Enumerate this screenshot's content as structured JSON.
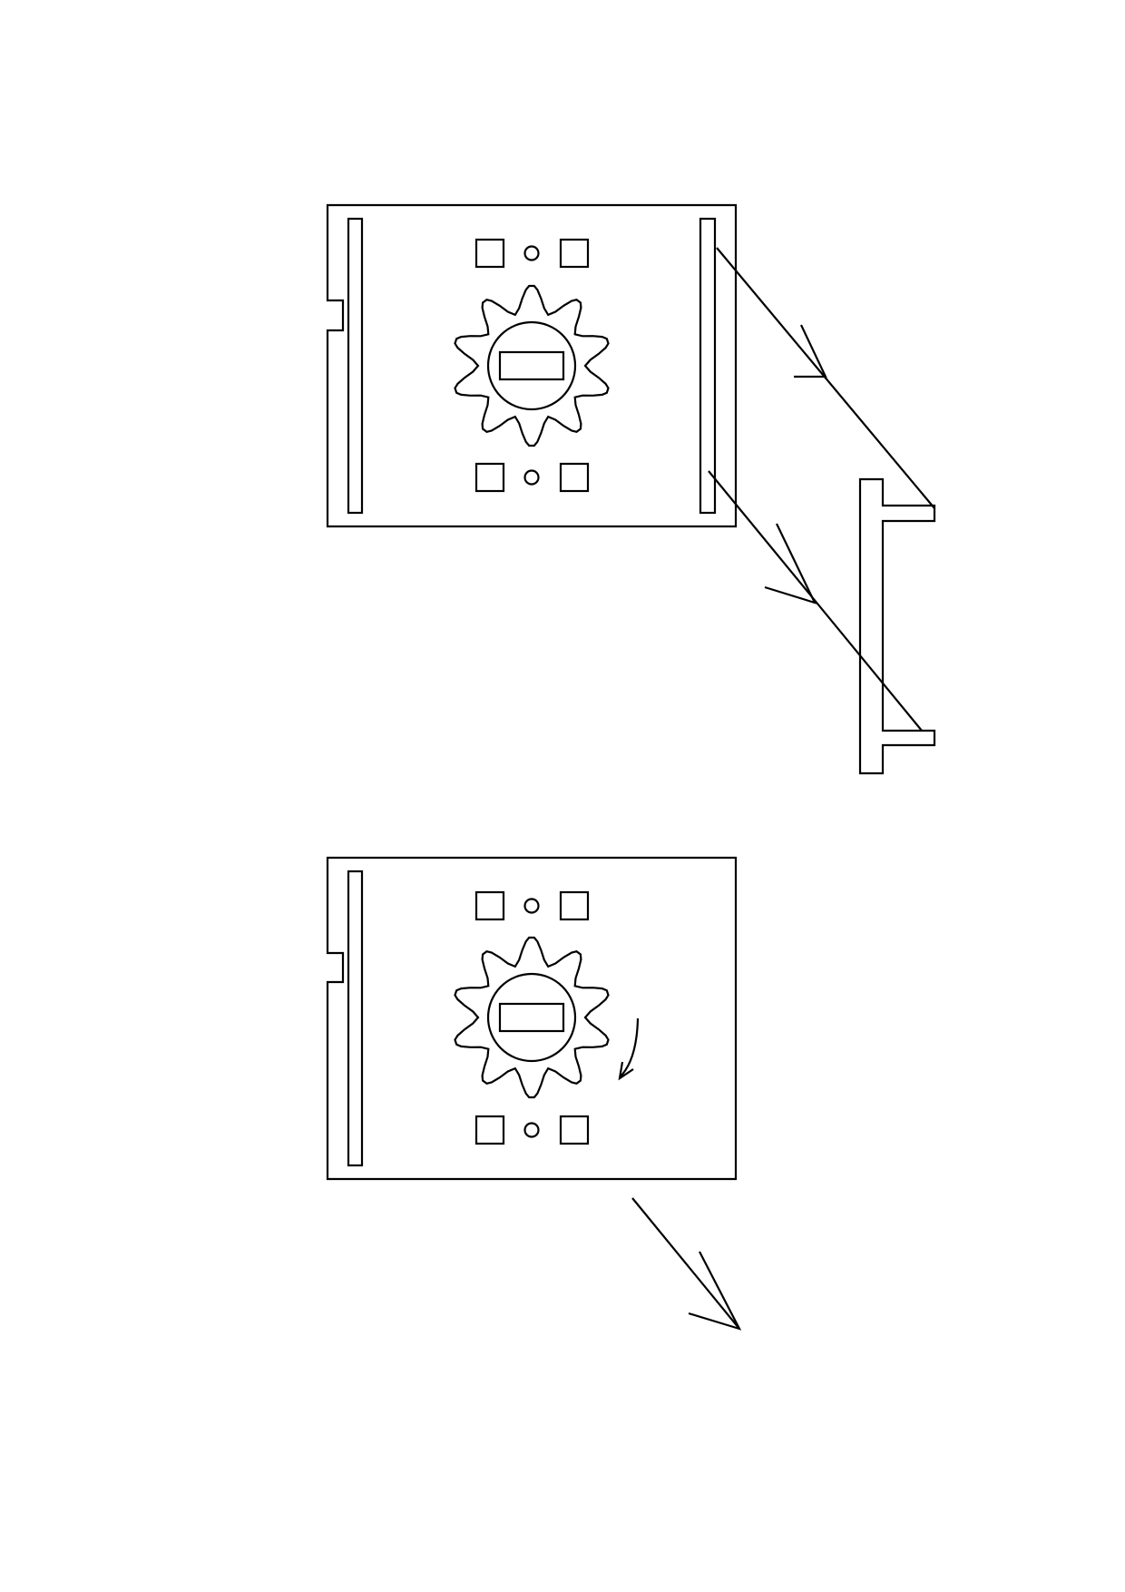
{
  "diagram": {
    "description_text": [],
    "colors": {
      "line": "#000000",
      "background": "#ffffff"
    },
    "panels": [
      {
        "id": "top-panel",
        "has_right_rail": true,
        "has_rotation_arrow": false
      },
      {
        "id": "bottom-panel",
        "has_right_rail": false,
        "has_rotation_arrow": true
      }
    ],
    "gear_teeth": 10,
    "steps": [
      "remove-right-rail-from-panel",
      "rotate-center-knob",
      "slide-panel-out-down-right"
    ]
  }
}
